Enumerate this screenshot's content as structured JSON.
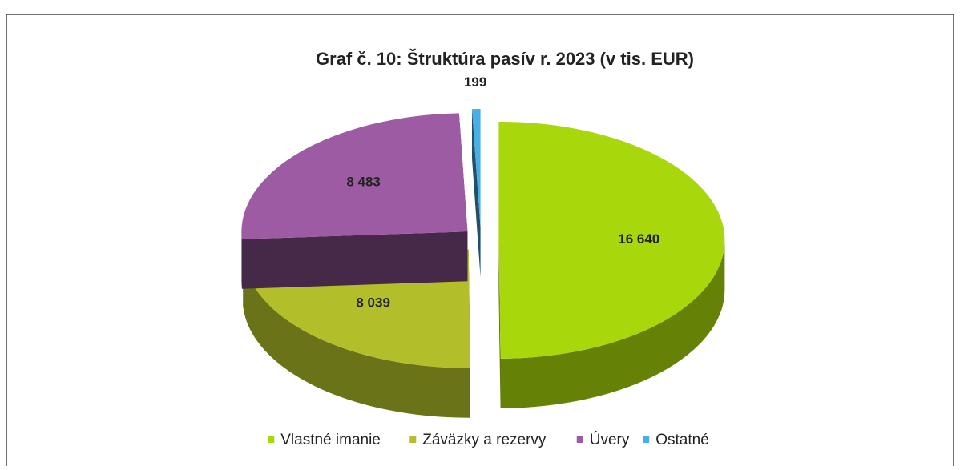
{
  "chart_data": {
    "type": "pie",
    "title": "Graf č. 10: Štruktúra pasív r. 2023 (v tis. EUR)",
    "categories": [
      "Vlastné imanie",
      "Záväzky a rezervy",
      "Úvery",
      "Ostatné"
    ],
    "values": [
      16640,
      8039,
      8483,
      199
    ],
    "value_labels": [
      "16 640",
      "8 039",
      "8 483",
      "199"
    ],
    "colors": [
      "#a8d80c",
      "#b3bf2a",
      "#9c5ba2",
      "#4aaee6"
    ],
    "legend": "bottom"
  }
}
